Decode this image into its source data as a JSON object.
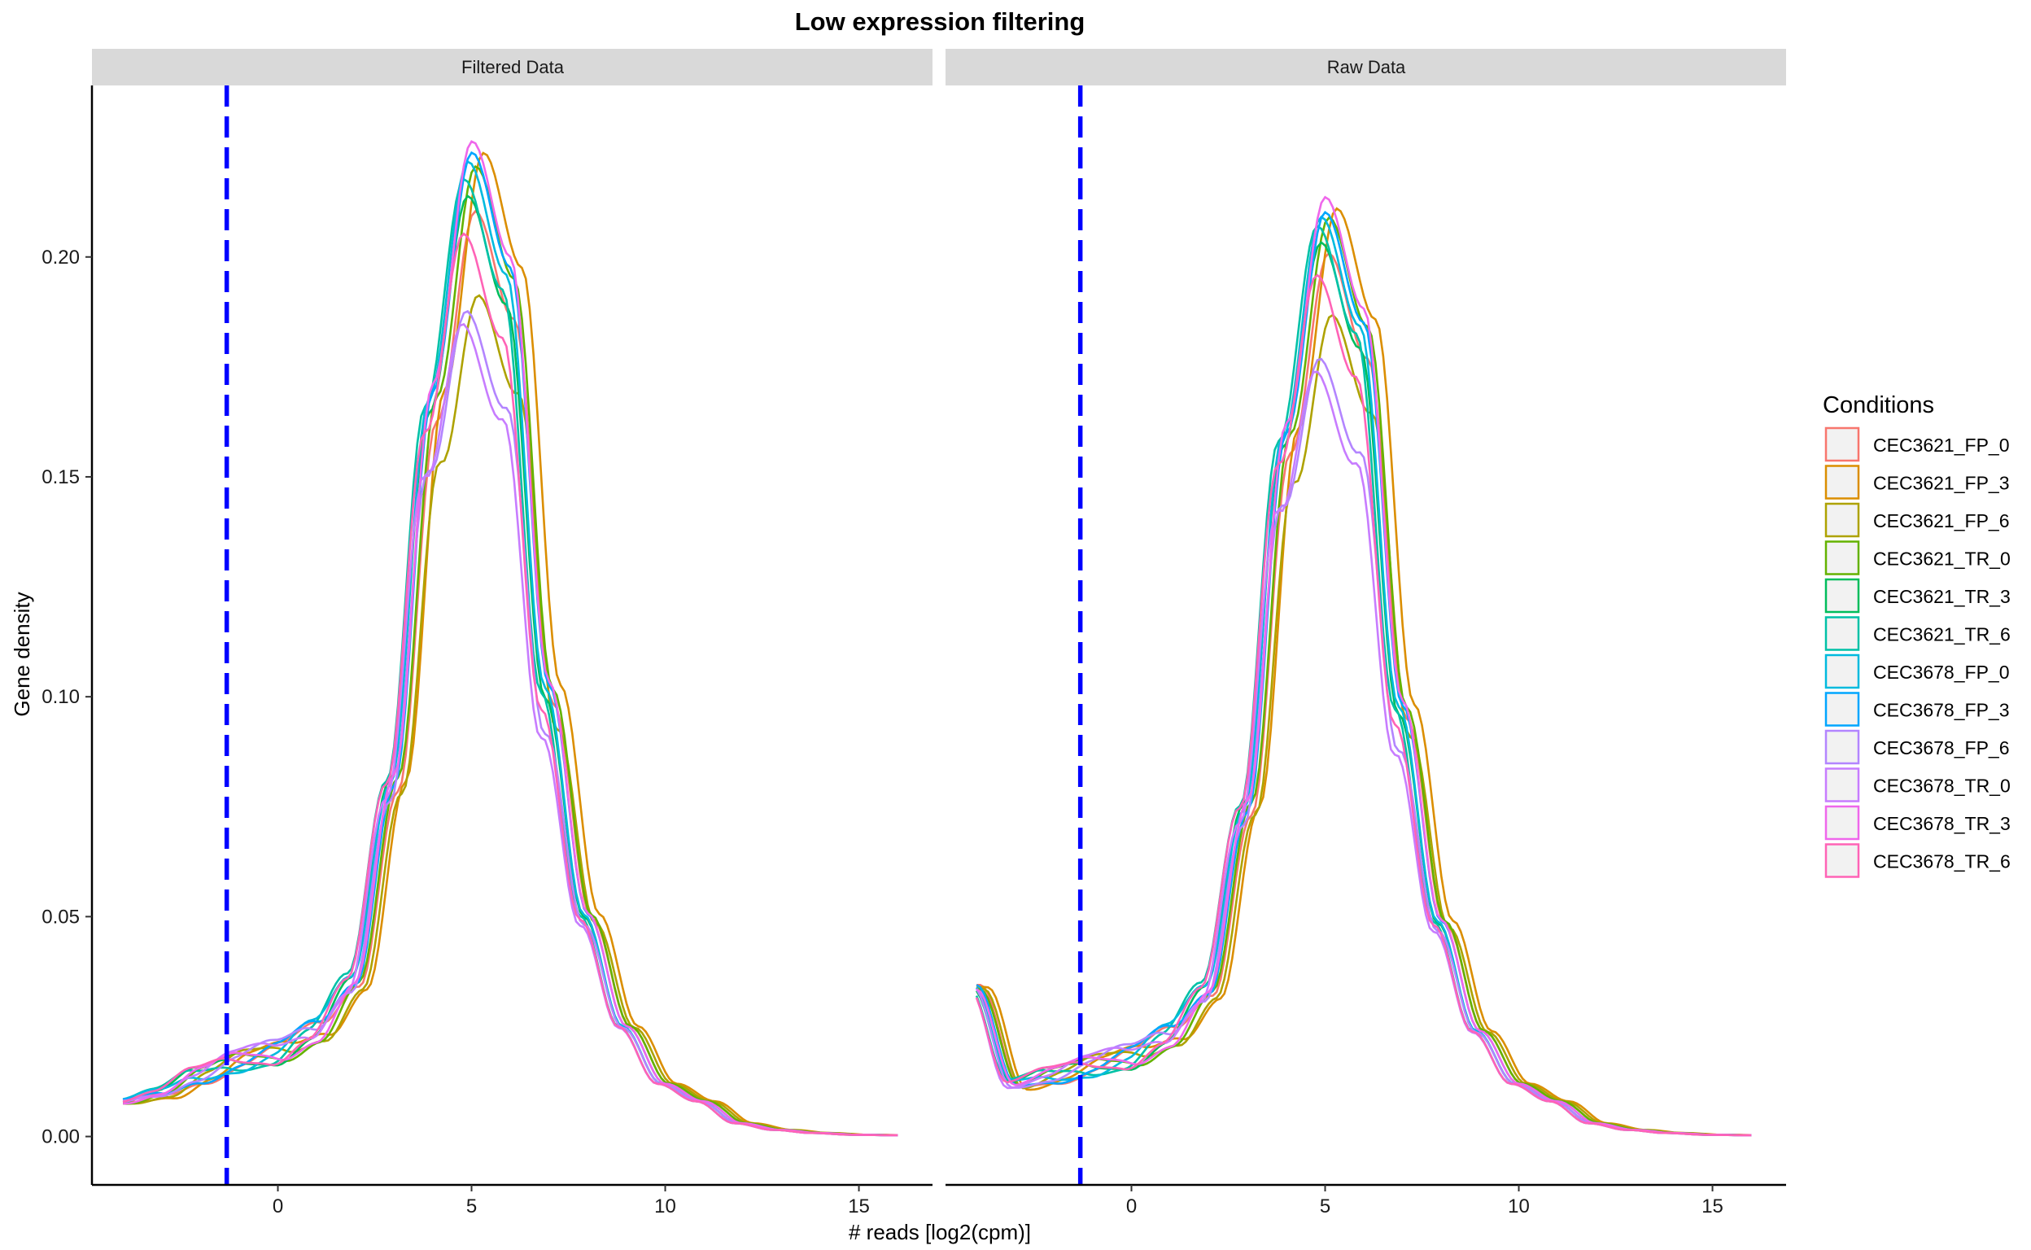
{
  "chart_data": {
    "type": "line",
    "title": "Low expression filtering",
    "xlabel": "# reads [log2(cpm)]",
    "ylabel": "Gene density",
    "xlim": [
      -4.8,
      16.9
    ],
    "ylim": [
      -0.011,
      0.239
    ],
    "x_ticks": [
      0,
      5,
      10,
      15
    ],
    "y_ticks": [
      "0.00",
      "0.05",
      "0.10",
      "0.15",
      "0.20"
    ],
    "cutoff_x": -1.32,
    "cutoff_color": "#0000ff",
    "panels": [
      {
        "name": "Filtered Data"
      },
      {
        "name": "Raw Data"
      }
    ],
    "legend": {
      "title": "Conditions",
      "placement": "right",
      "items": [
        {
          "label": "CEC3621_FP_0",
          "color": "#F8766D"
        },
        {
          "label": "CEC3621_FP_3",
          "color": "#DB8E00"
        },
        {
          "label": "CEC3621_FP_6",
          "color": "#AEA200"
        },
        {
          "label": "CEC3621_TR_0",
          "color": "#64B200"
        },
        {
          "label": "CEC3621_TR_3",
          "color": "#00BD5C"
        },
        {
          "label": "CEC3621_TR_6",
          "color": "#00C1A7"
        },
        {
          "label": "CEC3678_FP_0",
          "color": "#00BADE"
        },
        {
          "label": "CEC3678_FP_3",
          "color": "#00A6FF"
        },
        {
          "label": "CEC3678_FP_6",
          "color": "#B385FF"
        },
        {
          "label": "CEC3678_TR_0",
          "color": "#C77CFF"
        },
        {
          "label": "CEC3678_TR_3",
          "color": "#EF67EB"
        },
        {
          "label": "CEC3678_TR_6",
          "color": "#FF63B6"
        }
      ]
    },
    "series_note_values": {
      "x_grid": [
        -4,
        -3,
        -2,
        -1,
        0,
        1,
        2,
        3,
        4,
        5,
        6,
        7,
        8,
        9,
        10,
        11,
        12,
        13,
        14,
        15,
        16
      ],
      "filtered_template": [
        0.008,
        0.01,
        0.014,
        0.017,
        0.019,
        0.024,
        0.035,
        0.08,
        0.165,
        0.215,
        0.19,
        0.1,
        0.05,
        0.025,
        0.012,
        0.008,
        0.003,
        0.0015,
        0.0008,
        0.0004,
        0.0003
      ],
      "raw_template": [
        0.034,
        0.012,
        0.014,
        0.016,
        0.018,
        0.023,
        0.033,
        0.075,
        0.16,
        0.21,
        0.185,
        0.098,
        0.049,
        0.024,
        0.012,
        0.008,
        0.003,
        0.0015,
        0.0008,
        0.0004,
        0.0003
      ]
    },
    "series": [
      {
        "name": "CEC3621_FP_0",
        "peak_filtered": 0.21,
        "peak_raw": 0.205,
        "peak_x": 5.6
      },
      {
        "name": "CEC3621_FP_3",
        "peak_filtered": 0.224,
        "peak_raw": 0.216,
        "peak_x": 5.8
      },
      {
        "name": "CEC3621_FP_6",
        "peak_filtered": 0.19,
        "peak_raw": 0.19,
        "peak_x": 5.7
      },
      {
        "name": "CEC3621_TR_0",
        "peak_filtered": 0.221,
        "peak_raw": 0.214,
        "peak_x": 5.6
      },
      {
        "name": "CEC3621_TR_3",
        "peak_filtered": 0.214,
        "peak_raw": 0.208,
        "peak_x": 5.4
      },
      {
        "name": "CEC3621_TR_6",
        "peak_filtered": 0.218,
        "peak_raw": 0.212,
        "peak_x": 5.3
      },
      {
        "name": "CEC3678_FP_0",
        "peak_filtered": 0.222,
        "peak_raw": 0.214,
        "peak_x": 5.4
      },
      {
        "name": "CEC3678_FP_3",
        "peak_filtered": 0.224,
        "peak_raw": 0.215,
        "peak_x": 5.5
      },
      {
        "name": "CEC3678_FP_6",
        "peak_filtered": 0.186,
        "peak_raw": 0.179,
        "peak_x": 5.4
      },
      {
        "name": "CEC3678_TR_0",
        "peak_filtered": 0.183,
        "peak_raw": 0.176,
        "peak_x": 5.3
      },
      {
        "name": "CEC3678_TR_3",
        "peak_filtered": 0.227,
        "peak_raw": 0.219,
        "peak_x": 5.5
      },
      {
        "name": "CEC3678_TR_6",
        "peak_filtered": 0.205,
        "peak_raw": 0.2,
        "peak_x": 5.3
      }
    ]
  }
}
